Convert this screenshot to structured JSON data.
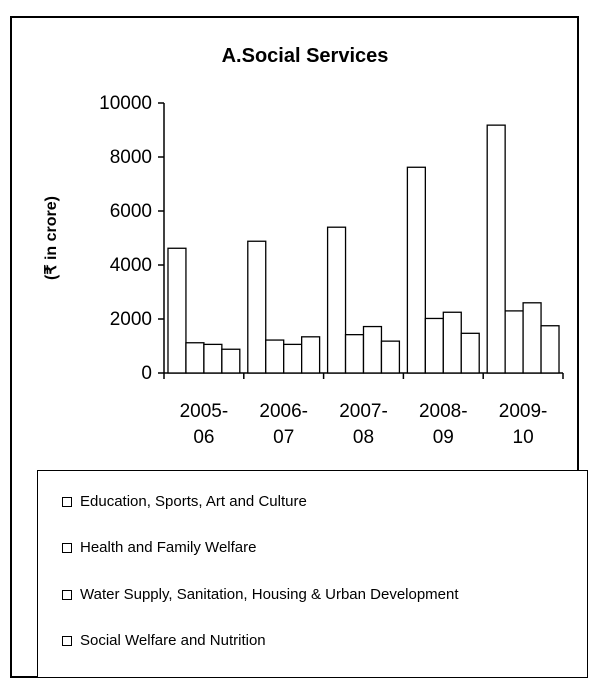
{
  "chart_data": {
    "type": "bar",
    "title": "A.Social Services",
    "ylabel": "(₹ in crore)",
    "xlabel": "",
    "ylim": [
      0,
      10000
    ],
    "yticks": [
      "0",
      "2000",
      "4000",
      "6000",
      "8000",
      "10000"
    ],
    "categories": [
      [
        "2005-",
        "06"
      ],
      [
        "2006-",
        "07"
      ],
      [
        "2007-",
        "08"
      ],
      [
        "2008-",
        "09"
      ],
      [
        "2009-",
        "10"
      ]
    ],
    "series": [
      {
        "name": "Education, Sports, Art and Culture",
        "values": [
          4620,
          4880,
          5400,
          7620,
          9180
        ]
      },
      {
        "name": "Health and Family Welfare",
        "values": [
          1120,
          1220,
          1420,
          2020,
          2300
        ]
      },
      {
        "name": "Water Supply, Sanitation, Housing & Urban Development",
        "values": [
          1060,
          1060,
          1720,
          2250,
          2600
        ]
      },
      {
        "name": "Social Welfare and Nutrition",
        "values": [
          880,
          1340,
          1180,
          1470,
          1750
        ]
      }
    ],
    "bar_fill": "#ffffff",
    "bar_stroke": "#000000",
    "grid": false,
    "legend_position": "bottom"
  }
}
